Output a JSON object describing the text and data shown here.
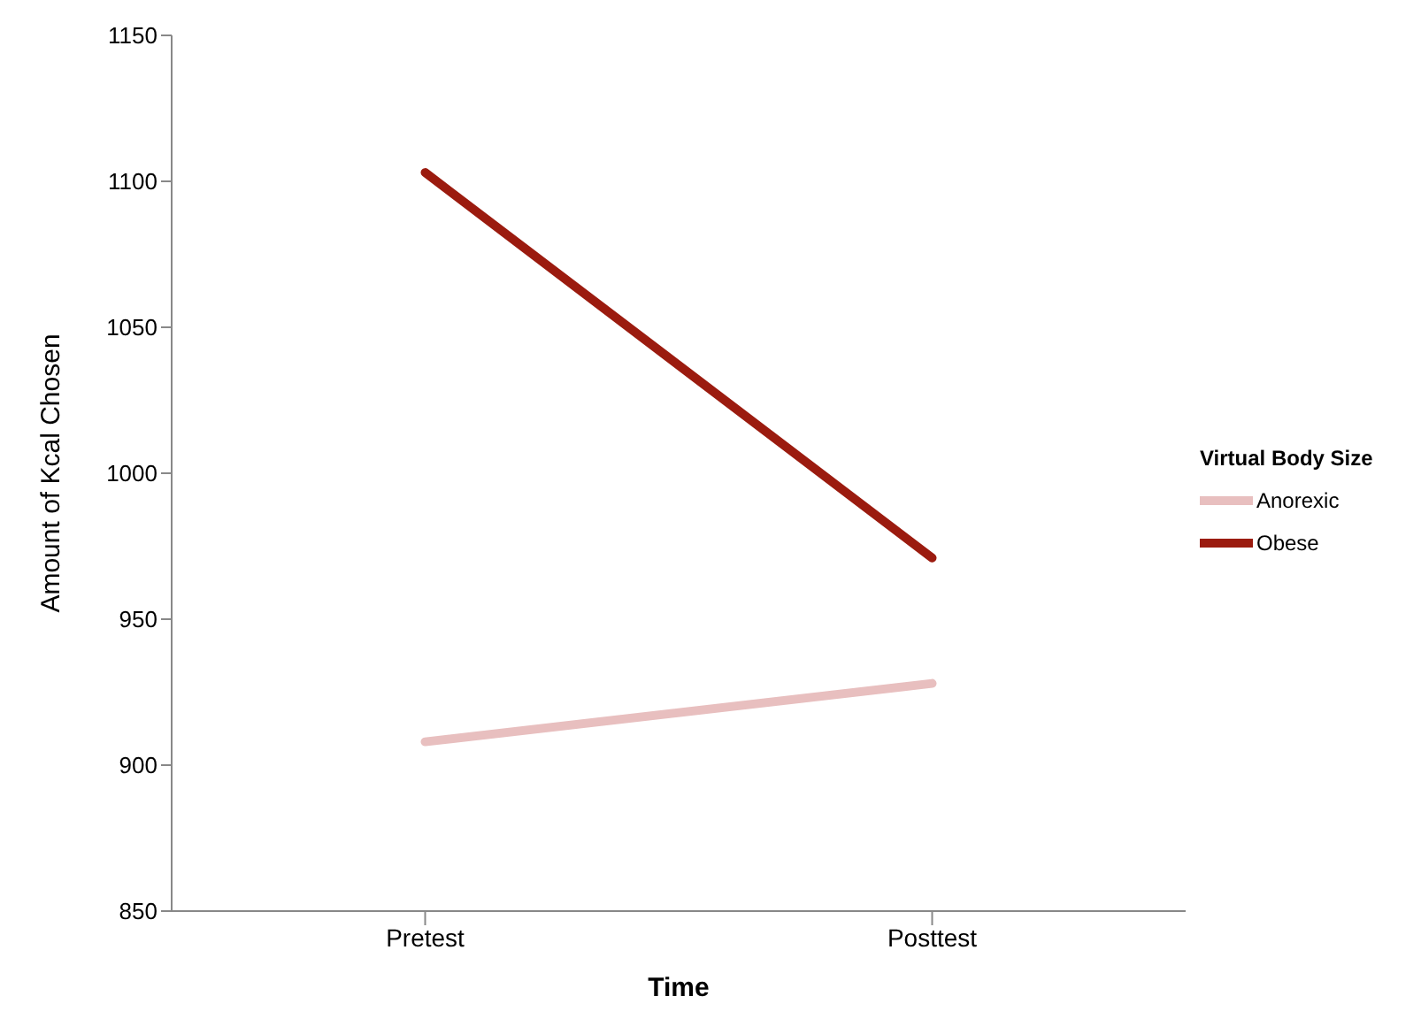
{
  "chart_data": {
    "type": "line",
    "xlabel": "Time",
    "ylabel": "Amount of Kcal Chosen",
    "legend_title": "Virtual Body Size",
    "categories": [
      "Pretest",
      "Posttest"
    ],
    "series": [
      {
        "name": "Anorexic",
        "color": "#e8bfbf",
        "values": [
          908,
          928
        ]
      },
      {
        "name": "Obese",
        "color": "#9b1b0f",
        "values": [
          1103,
          971
        ]
      }
    ],
    "ylim": [
      850,
      1150
    ],
    "yticks": [
      850,
      900,
      950,
      1000,
      1050,
      1100,
      1150
    ],
    "grid": false,
    "legend": "right",
    "marker": "none",
    "line_style": "solid"
  }
}
